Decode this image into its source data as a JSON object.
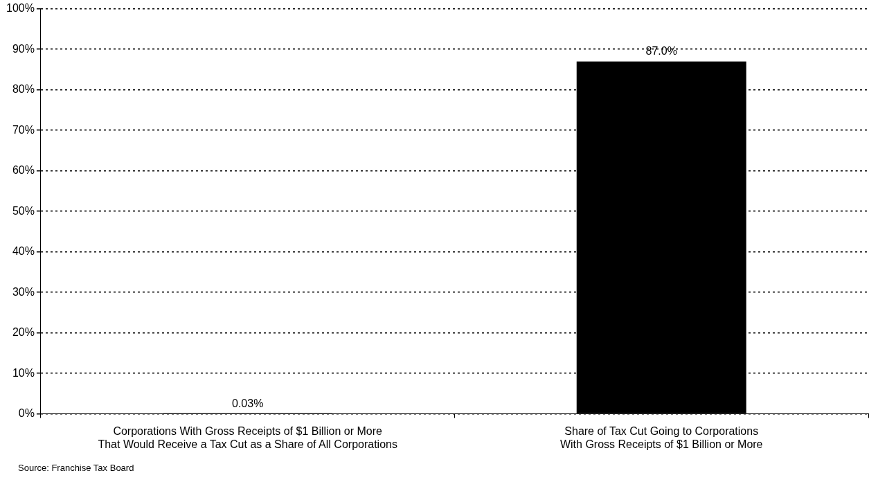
{
  "chart_data": {
    "type": "bar",
    "categories": [
      "Corporations With Gross Receipts of $1 Billion or More\nThat Would Receive a Tax Cut as a Share of All Corporations",
      "Share of Tax Cut Going to Corporations\nWith Gross Receipts of $1 Billion or More"
    ],
    "values": [
      0.03,
      87.0
    ],
    "color": "#000000",
    "value_labels": [
      "0.03%",
      "87.0%"
    ],
    "ylim": [
      0,
      100
    ],
    "yticks": [
      {
        "value": 0,
        "label": "0%"
      },
      {
        "value": 10,
        "label": "10%"
      },
      {
        "value": 20,
        "label": "20%"
      },
      {
        "value": 30,
        "label": "30%"
      },
      {
        "value": 40,
        "label": "40%"
      },
      {
        "value": 50,
        "label": "50%"
      },
      {
        "value": 60,
        "label": "60%"
      },
      {
        "value": 70,
        "label": "70%"
      },
      {
        "value": 80,
        "label": "80%"
      },
      {
        "value": 90,
        "label": "90%"
      },
      {
        "value": 100,
        "label": "100%"
      }
    ],
    "grid": "y",
    "legend": false,
    "annotations": [
      "Source: Franchise Tax Board"
    ]
  }
}
